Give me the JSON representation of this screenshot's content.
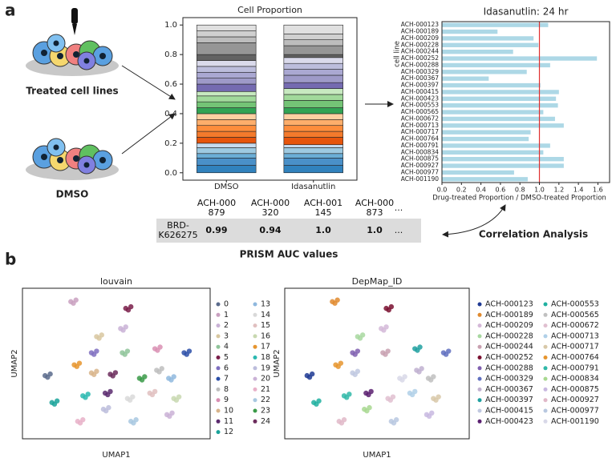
{
  "labels": {
    "panel_a": "a",
    "panel_b": "b",
    "treated": "Treated cell lines",
    "dmso": "DMSO",
    "correlation": "Correlation Analysis"
  },
  "table": {
    "caption": "PRISM AUC values",
    "header": [
      "ACH-000\n879",
      "ACH-000\n320",
      "ACH-001\n145",
      "ACH-000\n873",
      "..."
    ],
    "rows": [
      [
        "BRD-\nK626275",
        "0.99",
        "0.94",
        "1.0",
        "1.0",
        "..."
      ]
    ]
  },
  "chart_data": [
    {
      "type": "stacked_bar",
      "title": "Cell Proportion",
      "categories": [
        "DMSO",
        "Idasanutlin"
      ],
      "ylim": [
        -0.05,
        1.05
      ],
      "yticks": [
        {
          "value": 0,
          "label": "0.0"
        },
        0.2,
        0.4,
        0.6,
        0.8,
        {
          "value": 1,
          "label": "1.0"
        }
      ],
      "series": [
        {
          "color": "#3182bd",
          "values": [
            0.05,
            0.05
          ]
        },
        {
          "color": "#4a90c8",
          "values": [
            0.05,
            0.05
          ]
        },
        {
          "color": "#6baed6",
          "values": [
            0.03,
            0.03
          ]
        },
        {
          "color": "#9ecae1",
          "values": [
            0.04,
            0.04
          ]
        },
        {
          "color": "#c6dbef",
          "values": [
            0.03,
            0.02
          ]
        },
        {
          "color": "#e6550d",
          "values": [
            0.04,
            0.05
          ]
        },
        {
          "color": "#f47a2c",
          "values": [
            0.04,
            0.04
          ]
        },
        {
          "color": "#fd8d3c",
          "values": [
            0.04,
            0.04
          ]
        },
        {
          "color": "#fdae6b",
          "values": [
            0.04,
            0.04
          ]
        },
        {
          "color": "#fdd0a2",
          "values": [
            0.04,
            0.04
          ]
        },
        {
          "color": "#31a354",
          "values": [
            0.04,
            0.04
          ]
        },
        {
          "color": "#74c476",
          "values": [
            0.04,
            0.05
          ]
        },
        {
          "color": "#a1d99b",
          "values": [
            0.04,
            0.04
          ]
        },
        {
          "color": "#c7e9c0",
          "values": [
            0.03,
            0.04
          ]
        },
        {
          "color": "#756bb1",
          "values": [
            0.05,
            0.04
          ]
        },
        {
          "color": "#9e9ac8",
          "values": [
            0.04,
            0.05
          ]
        },
        {
          "color": "#aaa8d2",
          "values": [
            0.04,
            0.04
          ]
        },
        {
          "color": "#bcbddc",
          "values": [
            0.04,
            0.04
          ]
        },
        {
          "color": "#dadaeb",
          "values": [
            0.04,
            0.04
          ]
        },
        {
          "color": "#636363",
          "values": [
            0.04,
            0.02
          ]
        },
        {
          "color": "#969696",
          "values": [
            0.08,
            0.06
          ]
        },
        {
          "color": "#bdbdbd",
          "values": [
            0.04,
            0.04
          ]
        },
        {
          "color": "#d0d0d0",
          "values": [
            0.04,
            0.04
          ]
        },
        {
          "color": "#e0e0e0",
          "values": [
            0.04,
            0.06
          ]
        }
      ]
    },
    {
      "type": "barh",
      "title": "Idasanutlin: 24 hr",
      "xlabel": "Drug-treated Proportion / DMSO-treated Proportion",
      "ylabel": "cell line",
      "color": "#add8e6",
      "reference_line": {
        "value": 1,
        "color": "#e03030"
      },
      "categories": [
        "ACH-000123",
        "ACH-000189",
        "ACH-000209",
        "ACH-000228",
        "ACH-000244",
        "ACH-000252",
        "ACH-000288",
        "ACH-000329",
        "ACH-000367",
        "ACH-000397",
        "ACH-000415",
        "ACH-000423",
        "ACH-000553",
        "ACH-000565",
        "ACH-000672",
        "ACH-000713",
        "ACH-000717",
        "ACH-000764",
        "ACH-000791",
        "ACH-000834",
        "ACH-000875",
        "ACH-000927",
        "ACH-000977",
        "ACH-001190"
      ],
      "values": [
        1.09,
        0.57,
        0.94,
        0.99,
        0.73,
        1.59,
        1.11,
        0.87,
        0.48,
        1.01,
        1.2,
        1.17,
        1.19,
        1.04,
        1.16,
        1.25,
        0.91,
        0.89,
        1.11,
        1.04,
        1.25,
        1.25,
        0.74,
        0.88
      ],
      "xlim": [
        0,
        1.72
      ],
      "xticks": [
        {
          "value": 0,
          "label": "0.0"
        },
        0.2,
        0.4,
        0.6,
        0.8,
        {
          "value": 1,
          "label": "1.0"
        },
        1.2,
        1.4,
        1.6
      ]
    },
    {
      "type": "scatter",
      "title": "louvain",
      "xlabel": "UMAP1",
      "ylabel": "UMAP2",
      "xlim": [
        0,
        10
      ],
      "ylim": [
        0,
        10
      ],
      "series": [
        {
          "name": "0",
          "color": "#5a6b8c",
          "x": [
            0.85,
            1.15,
            1.0
          ],
          "y": [
            4.1,
            4.22,
            3.98
          ]
        },
        {
          "name": "1",
          "color": "#c9a0c0",
          "x": [
            2.35,
            2.65,
            2.5
          ],
          "y": [
            9.6,
            9.72,
            9.48
          ]
        },
        {
          "name": "2",
          "color": "#c9b2d6",
          "x": [
            5.25,
            5.55,
            5.4
          ],
          "y": [
            7.6,
            7.72,
            7.48
          ]
        },
        {
          "name": "3",
          "color": "#d8c7a0",
          "x": [
            3.85,
            4.15,
            4.0
          ],
          "y": [
            7.0,
            7.12,
            6.88
          ]
        },
        {
          "name": "4",
          "color": "#8fc49a",
          "x": [
            5.35,
            5.65,
            5.5
          ],
          "y": [
            5.8,
            5.92,
            5.68
          ]
        },
        {
          "name": "5",
          "color": "#7a1f4a",
          "x": [
            5.55,
            5.85,
            5.7
          ],
          "y": [
            9.1,
            9.22,
            8.98
          ]
        },
        {
          "name": "6",
          "color": "#7f6fc0",
          "x": [
            3.55,
            3.85,
            3.7
          ],
          "y": [
            5.8,
            5.92,
            5.68
          ]
        },
        {
          "name": "7",
          "color": "#2c4fa8",
          "x": [
            8.95,
            9.25,
            9.1
          ],
          "y": [
            5.8,
            5.92,
            5.68
          ]
        },
        {
          "name": "8",
          "color": "#bdbdbd",
          "x": [
            7.35,
            7.65,
            7.5
          ],
          "y": [
            4.5,
            4.62,
            4.38
          ]
        },
        {
          "name": "9",
          "color": "#d98fb3",
          "x": [
            7.25,
            7.55,
            7.4
          ],
          "y": [
            6.1,
            6.22,
            5.98
          ]
        },
        {
          "name": "10",
          "color": "#d8b48a",
          "x": [
            3.55,
            3.85,
            3.7
          ],
          "y": [
            4.3,
            4.42,
            4.18
          ]
        },
        {
          "name": "11",
          "color": "#5b2a6e",
          "x": [
            4.35,
            4.65,
            4.5
          ],
          "y": [
            2.8,
            2.92,
            2.68
          ]
        },
        {
          "name": "12",
          "color": "#1aa39a",
          "x": [
            1.25,
            1.55,
            1.4
          ],
          "y": [
            2.1,
            2.22,
            1.98
          ]
        },
        {
          "name": "13",
          "color": "#8fb8de",
          "x": [
            8.05,
            8.35,
            8.2
          ],
          "y": [
            3.9,
            4.02,
            3.78
          ]
        },
        {
          "name": "14",
          "color": "#d9d9d9",
          "x": [
            5.65,
            5.95,
            5.8
          ],
          "y": [
            2.4,
            2.52,
            2.28
          ]
        },
        {
          "name": "15",
          "color": "#e0c0c0",
          "x": [
            6.95,
            7.25,
            7.1
          ],
          "y": [
            2.8,
            2.92,
            2.68
          ]
        },
        {
          "name": "16",
          "color": "#c8d8b0",
          "x": [
            8.35,
            8.65,
            8.5
          ],
          "y": [
            2.4,
            2.52,
            2.28
          ]
        },
        {
          "name": "17",
          "color": "#e6952e",
          "x": [
            2.55,
            2.85,
            2.7
          ],
          "y": [
            4.9,
            5.02,
            4.78
          ]
        },
        {
          "name": "18",
          "color": "#2ab8b0",
          "x": [
            3.05,
            3.35,
            3.2
          ],
          "y": [
            2.6,
            2.72,
            2.48
          ]
        },
        {
          "name": "19",
          "color": "#bcbddc",
          "x": [
            4.25,
            4.55,
            4.4
          ],
          "y": [
            1.6,
            1.72,
            1.48
          ]
        },
        {
          "name": "20",
          "color": "#cab2d6",
          "x": [
            7.95,
            8.25,
            8.1
          ],
          "y": [
            1.2,
            1.32,
            1.08
          ]
        },
        {
          "name": "21",
          "color": "#e8b0c8",
          "x": [
            2.75,
            3.05,
            2.9
          ],
          "y": [
            0.7,
            0.82,
            0.58
          ]
        },
        {
          "name": "22",
          "color": "#a8c8e0",
          "x": [
            5.85,
            6.15,
            6.0
          ],
          "y": [
            0.7,
            0.82,
            0.58
          ]
        },
        {
          "name": "23",
          "color": "#3a9a48",
          "x": [
            6.35,
            6.65,
            6.5
          ],
          "y": [
            3.9,
            4.02,
            3.78
          ]
        },
        {
          "name": "24",
          "color": "#6b2c5c",
          "x": [
            4.65,
            4.95,
            4.8
          ],
          "y": [
            4.2,
            4.32,
            4.08
          ]
        }
      ]
    },
    {
      "type": "scatter",
      "title": "DepMap_ID",
      "xlabel": "UMAP1",
      "ylabel": "UMAP2",
      "xlim": [
        0,
        10
      ],
      "ylim": [
        0,
        10
      ],
      "series": [
        {
          "name": "ACH-000123",
          "color": "#1f3a93",
          "x": [
            0.85,
            1.15,
            1.0
          ],
          "y": [
            4.1,
            4.22,
            3.98
          ]
        },
        {
          "name": "ACH-000189",
          "color": "#e08a2e",
          "x": [
            2.35,
            2.65,
            2.5
          ],
          "y": [
            9.6,
            9.72,
            9.48
          ]
        },
        {
          "name": "ACH-000209",
          "color": "#d4b8d8",
          "x": [
            5.25,
            5.55,
            5.4
          ],
          "y": [
            7.6,
            7.72,
            7.48
          ]
        },
        {
          "name": "ACH-000228",
          "color": "#a8d8a0",
          "x": [
            3.85,
            4.15,
            4.0
          ],
          "y": [
            7.0,
            7.12,
            6.88
          ]
        },
        {
          "name": "ACH-000244",
          "color": "#c8a0b0",
          "x": [
            5.35,
            5.65,
            5.5
          ],
          "y": [
            5.8,
            5.92,
            5.68
          ]
        },
        {
          "name": "ACH-000252",
          "color": "#7a1030",
          "x": [
            5.55,
            5.85,
            5.7
          ],
          "y": [
            9.1,
            9.22,
            8.98
          ]
        },
        {
          "name": "ACH-000288",
          "color": "#8060b0",
          "x": [
            3.55,
            3.85,
            3.7
          ],
          "y": [
            5.8,
            5.92,
            5.68
          ]
        },
        {
          "name": "ACH-000329",
          "color": "#6070c0",
          "x": [
            8.95,
            9.25,
            9.1
          ],
          "y": [
            5.8,
            5.92,
            5.68
          ]
        },
        {
          "name": "ACH-000367",
          "color": "#c0b0d0",
          "x": [
            7.35,
            7.65,
            7.5
          ],
          "y": [
            4.5,
            4.62,
            4.38
          ]
        },
        {
          "name": "ACH-000397",
          "color": "#20a0a0",
          "x": [
            7.25,
            7.55,
            7.4
          ],
          "y": [
            6.1,
            6.22,
            5.98
          ]
        },
        {
          "name": "ACH-000415",
          "color": "#c0c8e0",
          "x": [
            3.55,
            3.85,
            3.7
          ],
          "y": [
            4.3,
            4.42,
            4.18
          ]
        },
        {
          "name": "ACH-000423",
          "color": "#5a2070",
          "x": [
            4.35,
            4.65,
            4.5
          ],
          "y": [
            2.8,
            2.92,
            2.68
          ]
        },
        {
          "name": "ACH-000553",
          "color": "#20b0a0",
          "x": [
            1.25,
            1.55,
            1.4
          ],
          "y": [
            2.1,
            2.22,
            1.98
          ]
        },
        {
          "name": "ACH-000565",
          "color": "#c0c0c0",
          "x": [
            8.05,
            8.35,
            8.2
          ],
          "y": [
            3.9,
            4.02,
            3.78
          ]
        },
        {
          "name": "ACH-000672",
          "color": "#e0c0d0",
          "x": [
            5.65,
            5.95,
            5.8
          ],
          "y": [
            2.4,
            2.52,
            2.28
          ]
        },
        {
          "name": "ACH-000713",
          "color": "#b0d0e8",
          "x": [
            6.95,
            7.25,
            7.1
          ],
          "y": [
            2.8,
            2.92,
            2.68
          ]
        },
        {
          "name": "ACH-000717",
          "color": "#d8c8a8",
          "x": [
            8.35,
            8.65,
            8.5
          ],
          "y": [
            2.4,
            2.52,
            2.28
          ]
        },
        {
          "name": "ACH-000764",
          "color": "#e6952e",
          "x": [
            2.55,
            2.85,
            2.7
          ],
          "y": [
            4.9,
            5.02,
            4.78
          ]
        },
        {
          "name": "ACH-000791",
          "color": "#30b8a8",
          "x": [
            3.05,
            3.35,
            3.2
          ],
          "y": [
            2.6,
            2.72,
            2.48
          ]
        },
        {
          "name": "ACH-000834",
          "color": "#a8d890",
          "x": [
            4.25,
            4.55,
            4.4
          ],
          "y": [
            1.6,
            1.72,
            1.48
          ]
        },
        {
          "name": "ACH-000875",
          "color": "#c8b8e0",
          "x": [
            7.95,
            8.25,
            8.1
          ],
          "y": [
            1.2,
            1.32,
            1.08
          ]
        },
        {
          "name": "ACH-000927",
          "color": "#e0b8c8",
          "x": [
            2.75,
            3.05,
            2.9
          ],
          "y": [
            0.7,
            0.82,
            0.58
          ]
        },
        {
          "name": "ACH-000977",
          "color": "#b8c8e0",
          "x": [
            5.85,
            6.15,
            6.0
          ],
          "y": [
            0.7,
            0.82,
            0.58
          ]
        },
        {
          "name": "ACH-001190",
          "color": "#d8d8e8",
          "x": [
            6.35,
            6.65,
            6.5
          ],
          "y": [
            3.9,
            4.02,
            3.78
          ]
        }
      ]
    }
  ]
}
